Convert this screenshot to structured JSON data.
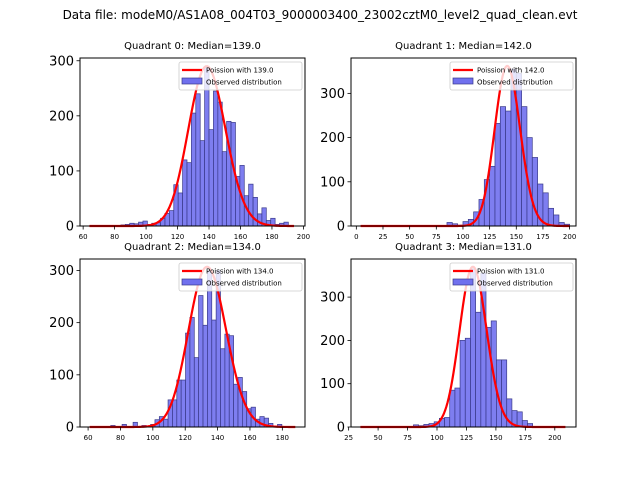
{
  "suptitle": "Data file: modeM0/AS1A08_004T03_9000003400_23002cztM0_level2_quad_clean.evt",
  "colors": {
    "bar_fill": "#7070ee",
    "bar_edge": "#3a3a8a",
    "poisson_line": "#ff0000"
  },
  "chart_data": [
    {
      "type": "bar",
      "title": "Quadrant 0: Median=139.0",
      "legend": [
        "Poission with 139.0",
        "Observed distribution"
      ],
      "legend_position": "top-right",
      "xlim": [
        58,
        201
      ],
      "ylim": [
        0,
        305
      ],
      "xticks": [
        60,
        80,
        100,
        120,
        140,
        160,
        180,
        200
      ],
      "yticks": [
        0,
        100,
        200,
        300
      ],
      "bin_width": 2.8,
      "bins": [
        [
          84.0,
          2
        ],
        [
          86.8,
          3
        ],
        [
          89.6,
          5
        ],
        [
          92.4,
          4
        ],
        [
          95.2,
          7
        ],
        [
          98.0,
          9
        ],
        [
          100.8,
          3
        ],
        [
          103.6,
          5
        ],
        [
          106.4,
          6
        ],
        [
          109.2,
          14
        ],
        [
          112.0,
          23
        ],
        [
          114.8,
          28
        ],
        [
          117.6,
          75
        ],
        [
          120.4,
          60
        ],
        [
          123.2,
          120
        ],
        [
          126.0,
          115
        ],
        [
          128.8,
          205
        ],
        [
          131.6,
          240
        ],
        [
          134.4,
          155
        ],
        [
          137.2,
          290
        ],
        [
          140.0,
          175
        ],
        [
          142.8,
          245
        ],
        [
          145.6,
          225
        ],
        [
          148.4,
          135
        ],
        [
          151.2,
          190
        ],
        [
          154.0,
          188
        ],
        [
          156.8,
          90
        ],
        [
          159.6,
          110
        ],
        [
          162.4,
          55
        ],
        [
          165.2,
          76
        ],
        [
          168.0,
          52
        ],
        [
          170.8,
          22
        ],
        [
          173.6,
          33
        ],
        [
          176.4,
          10
        ],
        [
          179.2,
          14
        ],
        [
          182.0,
          3
        ],
        [
          184.8,
          5
        ],
        [
          187.6,
          7
        ]
      ],
      "poisson": {
        "mean": 139.0,
        "peak": 290,
        "x_range": [
          64,
          194
        ]
      }
    },
    {
      "type": "bar",
      "title": "Quadrant 1: Median=142.0",
      "legend": [
        "Poission with 142.0",
        "Observed distribution"
      ],
      "legend_position": "top-right",
      "xlim": [
        -5,
        206
      ],
      "ylim": [
        0,
        380
      ],
      "xticks": [
        0,
        25,
        50,
        75,
        100,
        125,
        150,
        175,
        200
      ],
      "yticks": [
        0,
        100,
        200,
        300
      ],
      "bin_width": 5.0,
      "bins": [
        [
          85,
          8
        ],
        [
          90,
          5
        ],
        [
          95,
          2
        ],
        [
          100,
          10
        ],
        [
          105,
          15
        ],
        [
          110,
          32
        ],
        [
          115,
          60
        ],
        [
          120,
          105
        ],
        [
          125,
          135
        ],
        [
          130,
          232
        ],
        [
          135,
          270
        ],
        [
          140,
          260
        ],
        [
          145,
          355
        ],
        [
          150,
          345
        ],
        [
          155,
          270
        ],
        [
          160,
          200
        ],
        [
          165,
          155
        ],
        [
          170,
          95
        ],
        [
          175,
          75
        ],
        [
          180,
          40
        ],
        [
          185,
          25
        ],
        [
          190,
          8
        ],
        [
          195,
          4
        ]
      ],
      "poisson": {
        "mean": 142.0,
        "peak": 362,
        "x_range": [
          4,
          200
        ]
      }
    },
    {
      "type": "bar",
      "title": "Quadrant 2: Median=134.0",
      "legend": [
        "Poission with 134.0",
        "Observed distribution"
      ],
      "legend_position": "top-right",
      "xlim": [
        55,
        194
      ],
      "ylim": [
        0,
        322
      ],
      "xticks": [
        60,
        80,
        100,
        120,
        140,
        160,
        180
      ],
      "yticks": [
        0,
        100,
        200,
        300
      ],
      "bin_width": 2.7,
      "bins": [
        [
          74.0,
          3
        ],
        [
          81.0,
          5
        ],
        [
          87.8,
          9
        ],
        [
          93.2,
          3
        ],
        [
          98.6,
          5
        ],
        [
          101.3,
          14
        ],
        [
          104.0,
          20
        ],
        [
          106.7,
          15
        ],
        [
          109.4,
          52
        ],
        [
          112.1,
          52
        ],
        [
          114.8,
          90
        ],
        [
          117.5,
          90
        ],
        [
          120.2,
          180
        ],
        [
          122.9,
          210
        ],
        [
          125.6,
          133
        ],
        [
          128.3,
          252
        ],
        [
          131.0,
          195
        ],
        [
          133.7,
          300
        ],
        [
          136.4,
          205
        ],
        [
          139.1,
          300
        ],
        [
          141.8,
          150
        ],
        [
          144.5,
          178
        ],
        [
          147.2,
          175
        ],
        [
          149.9,
          82
        ],
        [
          152.6,
          95
        ],
        [
          155.3,
          68
        ],
        [
          158.0,
          35
        ],
        [
          160.7,
          38
        ],
        [
          163.4,
          15
        ],
        [
          166.1,
          20
        ],
        [
          168.8,
          17
        ],
        [
          171.5,
          7
        ],
        [
          177.0,
          5
        ]
      ],
      "poisson": {
        "mean": 134.0,
        "peak": 307,
        "x_range": [
          61,
          188
        ]
      }
    },
    {
      "type": "bar",
      "title": "Quadrant 3: Median=131.0",
      "legend": [
        "Poission with 131.0",
        "Observed distribution"
      ],
      "legend_position": "top-right",
      "xlim": [
        27,
        218
      ],
      "ylim": [
        0,
        388
      ],
      "xticks": [
        25,
        50,
        75,
        100,
        125,
        150,
        175,
        200
      ],
      "yticks": [
        0,
        100,
        200,
        300
      ],
      "bin_width": 4.4,
      "bins": [
        [
          80.0,
          5
        ],
        [
          84.4,
          3
        ],
        [
          88.8,
          6
        ],
        [
          93.2,
          8
        ],
        [
          97.6,
          12
        ],
        [
          102.0,
          20
        ],
        [
          106.4,
          22
        ],
        [
          110.8,
          85
        ],
        [
          115.2,
          90
        ],
        [
          119.6,
          200
        ],
        [
          124.0,
          205
        ],
        [
          128.4,
          365
        ],
        [
          132.8,
          265
        ],
        [
          137.2,
          355
        ],
        [
          141.6,
          230
        ],
        [
          146.0,
          245
        ],
        [
          150.4,
          155
        ],
        [
          154.8,
          155
        ],
        [
          159.2,
          65
        ],
        [
          163.6,
          38
        ],
        [
          168.0,
          35
        ],
        [
          172.4,
          15
        ],
        [
          176.8,
          8
        ]
      ],
      "poisson": {
        "mean": 131.0,
        "peak": 370,
        "x_range": [
          35,
          209
        ]
      }
    }
  ]
}
